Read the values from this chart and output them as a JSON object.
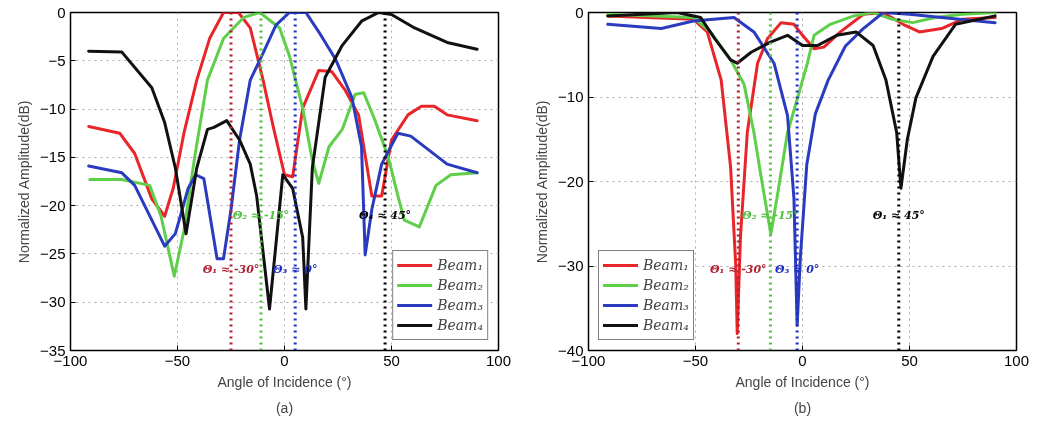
{
  "chart_data": [
    {
      "type": "line",
      "title": "(a)",
      "xlabel": "Angle of Incidence (°)",
      "ylabel": "Normalized Amplitude(dB)",
      "xlim": [
        -100,
        100
      ],
      "ylim": [
        -35,
        0
      ],
      "xticks": [
        -100,
        -50,
        0,
        50,
        100
      ],
      "yticks": [
        -35,
        -30,
        -25,
        -20,
        -15,
        -10,
        -5,
        0
      ],
      "grid": true,
      "legend": "bottom right",
      "line_style": "solid",
      "series": [
        {
          "name": "Beam₁",
          "color": "#e8262a",
          "x": [
            -91.5,
            -77,
            -70,
            -62,
            -56,
            -52,
            -47,
            -41,
            -35,
            -28.5,
            -21.5,
            -16,
            -10,
            -5.4,
            0,
            3.8,
            8.5,
            16,
            22,
            28.5,
            34.6,
            40.8,
            45.4,
            50,
            57.7,
            64,
            70,
            76,
            90
          ],
          "values": [
            -11.8,
            -12.5,
            -14.6,
            -19.3,
            -21.1,
            -18.2,
            -12.5,
            -7,
            -2.7,
            0,
            0,
            -1.6,
            -7,
            -11.7,
            -16.8,
            -17,
            -9.9,
            -6,
            -6.1,
            -8.1,
            -10.6,
            -19,
            -19,
            -13.2,
            -10.6,
            -9.7,
            -9.7,
            -10.6,
            -11.2
          ]
        },
        {
          "name": "Beam₂",
          "color": "#5fcf4a",
          "x": [
            -91,
            -76,
            -63,
            -57.7,
            -51.5,
            -47,
            -42,
            -36,
            -28.5,
            -19,
            -11.5,
            -2.3,
            2.3,
            8.5,
            13,
            16,
            20.8,
            27,
            33,
            37,
            42,
            48.5,
            53,
            56,
            63,
            70.8,
            77.7,
            90
          ],
          "values": [
            -17.3,
            -17.3,
            -17.9,
            -21.1,
            -27.3,
            -22.6,
            -15,
            -7,
            -2.7,
            -0.5,
            0,
            -1.6,
            -4.5,
            -9.9,
            -15.3,
            -17.7,
            -13.9,
            -12.1,
            -8.5,
            -8.3,
            -11,
            -15,
            -19,
            -21.5,
            -22.2,
            -17.9,
            -16.8,
            -16.6
          ]
        },
        {
          "name": "Beam₃",
          "color": "#2b3bbf",
          "x": [
            -91.5,
            -76,
            -70,
            -56,
            -51,
            -45,
            -41.5,
            -37.7,
            -31.5,
            -28.5,
            -25,
            -21,
            -16,
            -10,
            -4,
            2.3,
            10,
            16,
            24,
            31.5,
            36,
            37.7,
            40.8,
            45.4,
            53,
            59,
            76,
            90
          ],
          "values": [
            -15.9,
            -16.6,
            -17.9,
            -24.2,
            -22.9,
            -18.2,
            -16.8,
            -17.2,
            -25.5,
            -25.5,
            -20.4,
            -13.2,
            -7,
            -4.2,
            -1.3,
            0,
            0,
            -2,
            -4.9,
            -8.8,
            -13.9,
            -25.1,
            -20.4,
            -15.7,
            -12.5,
            -12.8,
            -15.7,
            -16.6
          ]
        },
        {
          "name": "Beam₄",
          "color": "#111111",
          "x": [
            -91.5,
            -76,
            -62,
            -56,
            -51,
            -46,
            -41,
            -36,
            -33,
            -27,
            -21,
            -16,
            -13,
            -7,
            -4,
            -0.8,
            3.8,
            8.5,
            10,
            13,
            19,
            27,
            36,
            44,
            50,
            60.8,
            76,
            90
          ],
          "values": [
            -4,
            -4.1,
            -7.8,
            -11.4,
            -16.1,
            -22.9,
            -16.1,
            -12.1,
            -11.9,
            -11.2,
            -13.2,
            -15.7,
            -19,
            -30.7,
            -24,
            -16.8,
            -18.2,
            -23.3,
            -30.7,
            -16.1,
            -6.7,
            -3.4,
            -0.9,
            0,
            -0.2,
            -1.6,
            -3.1,
            -3.8
          ]
        }
      ],
      "ref_lines": [
        {
          "axis": "x",
          "value": -25,
          "label": "Θ₁ ≈ -30°",
          "color": "#b02030",
          "line_style": "dotted"
        },
        {
          "axis": "x",
          "value": -11,
          "label": "Θ₂ ≈ -15°",
          "color": "#50c040",
          "line_style": "dotted"
        },
        {
          "axis": "x",
          "value": 5,
          "label": "Θ₃ ≈ 0°",
          "color": "#2030c0",
          "line_style": "dotted"
        },
        {
          "axis": "x",
          "value": 47,
          "label": "Θ₄ ≈ 45°",
          "color": "#000000",
          "line_style": "dotted"
        }
      ]
    },
    {
      "type": "line",
      "title": "(b)",
      "xlabel": "Angle of Incidence (°)",
      "ylabel": "Normalized Amplitude(dB)",
      "xlim": [
        -100,
        100
      ],
      "ylim": [
        -40,
        0
      ],
      "xticks": [
        -100,
        -50,
        0,
        50,
        100
      ],
      "yticks": [
        -40,
        -30,
        -20,
        -10,
        0
      ],
      "grid": true,
      "legend": "bottom left",
      "line_style": "solid",
      "series": [
        {
          "name": "Beam₁",
          "color": "#e8262a",
          "x": [
            -91,
            -51,
            -44.5,
            -38,
            -33.6,
            -31.2,
            -30.5,
            -29,
            -25.8,
            -21,
            -16.4,
            -10,
            -4,
            0,
            5.4,
            10,
            17.7,
            28.5,
            37.7,
            47,
            54.6,
            65,
            74.6,
            90
          ],
          "values": [
            -0.4,
            -0.8,
            -2.3,
            -8,
            -18.3,
            -29.9,
            -38,
            -26.6,
            -14.2,
            -6,
            -3.1,
            -1.2,
            -1.4,
            -2.7,
            -4.3,
            -4.1,
            -2.3,
            -0.2,
            0,
            -1.4,
            -2.3,
            -1.9,
            -0.8,
            -0.6
          ]
        },
        {
          "name": "Beam₂",
          "color": "#5fcf4a",
          "x": [
            -91,
            -51,
            -43,
            -33.6,
            -27.3,
            -22.7,
            -19.5,
            -14.8,
            -11.7,
            -7,
            -2.3,
            2.3,
            5.4,
            13,
            24,
            33,
            42,
            51.5,
            62,
            74.6,
            90
          ],
          "values": [
            -0.2,
            -0.6,
            -2.3,
            -5.6,
            -8.5,
            -14.2,
            -19.2,
            -26.2,
            -21.6,
            -14.2,
            -10.1,
            -6,
            -2.7,
            -1.4,
            -0.4,
            0,
            -0.8,
            -1.2,
            -0.6,
            -0.2,
            0
          ]
        },
        {
          "name": "Beam₃",
          "color": "#2b3bbf",
          "x": [
            -91,
            -66,
            -51,
            -32,
            -22.7,
            -13.3,
            -7,
            -4,
            -2.5,
            -1,
            2,
            6,
            12,
            20,
            28,
            37.7,
            50,
            65,
            90
          ],
          "values": [
            -1.4,
            -1.9,
            -1,
            -0.6,
            -2.3,
            -6,
            -12.2,
            -22,
            -37,
            -29,
            -18,
            -12,
            -8,
            -4,
            -2,
            0,
            -0.2,
            -0.6,
            -1.2
          ]
        },
        {
          "name": "Beam₄",
          "color": "#111111",
          "x": [
            -91,
            -58.6,
            -47.6,
            -41,
            -33.6,
            -30.5,
            -24,
            -15,
            -7,
            0,
            7,
            16,
            25,
            33,
            39,
            44,
            46,
            49,
            53,
            61,
            71.5,
            90
          ],
          "values": [
            -0.4,
            0,
            -0.6,
            -3.1,
            -5.6,
            -6,
            -4.7,
            -3.5,
            -2.7,
            -3.9,
            -3.9,
            -2.7,
            -2.3,
            -3.9,
            -8,
            -14.2,
            -20.8,
            -15,
            -10.1,
            -5.2,
            -1.4,
            -0.4
          ]
        }
      ],
      "ref_lines": [
        {
          "axis": "x",
          "value": -30,
          "label": "Θ₁ ≈ -30°",
          "color": "#b02030",
          "line_style": "dotted"
        },
        {
          "axis": "x",
          "value": -15,
          "label": "Θ₂ ≈ -15°",
          "color": "#50c040",
          "line_style": "dotted"
        },
        {
          "axis": "x",
          "value": -2.5,
          "label": "Θ₃ ≈ 0°",
          "color": "#2030c0",
          "line_style": "dotted"
        },
        {
          "axis": "x",
          "value": 45,
          "label": "Θ₁ ≈ 45°",
          "color": "#000000",
          "line_style": "dotted"
        }
      ]
    }
  ]
}
